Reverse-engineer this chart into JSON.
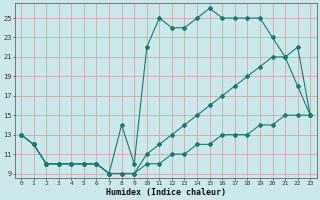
{
  "xlabel": "Humidex (Indice chaleur)",
  "bg_color": "#cce8ea",
  "line_color": "#1a7a6e",
  "grid_color": "#c8a0a0",
  "xlim": [
    -0.5,
    23.5
  ],
  "ylim": [
    8.5,
    26.5
  ],
  "xticks": [
    0,
    1,
    2,
    3,
    4,
    5,
    6,
    7,
    8,
    9,
    10,
    11,
    12,
    13,
    14,
    15,
    16,
    17,
    18,
    19,
    20,
    21,
    22,
    23
  ],
  "yticks": [
    9,
    11,
    13,
    15,
    17,
    19,
    21,
    23,
    25
  ],
  "line1_x": [
    0,
    1,
    2,
    3,
    4,
    5,
    6,
    7,
    8,
    9,
    10,
    11,
    12,
    13,
    14,
    15,
    16,
    17,
    18,
    19,
    20,
    21,
    22,
    23
  ],
  "line1_y": [
    13,
    12,
    10,
    10,
    10,
    10,
    10,
    9,
    14,
    10,
    22,
    25,
    24,
    24,
    25,
    26,
    25,
    25,
    25,
    25,
    23,
    21,
    18,
    15
  ],
  "line2_x": [
    0,
    1,
    2,
    3,
    4,
    5,
    6,
    7,
    8,
    9,
    10,
    11,
    12,
    13,
    14,
    15,
    16,
    17,
    18,
    19,
    20,
    21,
    22,
    23
  ],
  "line2_y": [
    13,
    12,
    10,
    10,
    10,
    10,
    10,
    9,
    9,
    9,
    11,
    12,
    13,
    14,
    15,
    16,
    17,
    18,
    19,
    20,
    21,
    21,
    22,
    15
  ],
  "line3_x": [
    0,
    1,
    2,
    3,
    4,
    5,
    6,
    7,
    8,
    9,
    10,
    11,
    12,
    13,
    14,
    15,
    16,
    17,
    18,
    19,
    20,
    21,
    22,
    23
  ],
  "line3_y": [
    13,
    12,
    10,
    10,
    10,
    10,
    10,
    9,
    9,
    9,
    10,
    10,
    11,
    11,
    12,
    12,
    13,
    13,
    13,
    14,
    14,
    15,
    15,
    15
  ]
}
